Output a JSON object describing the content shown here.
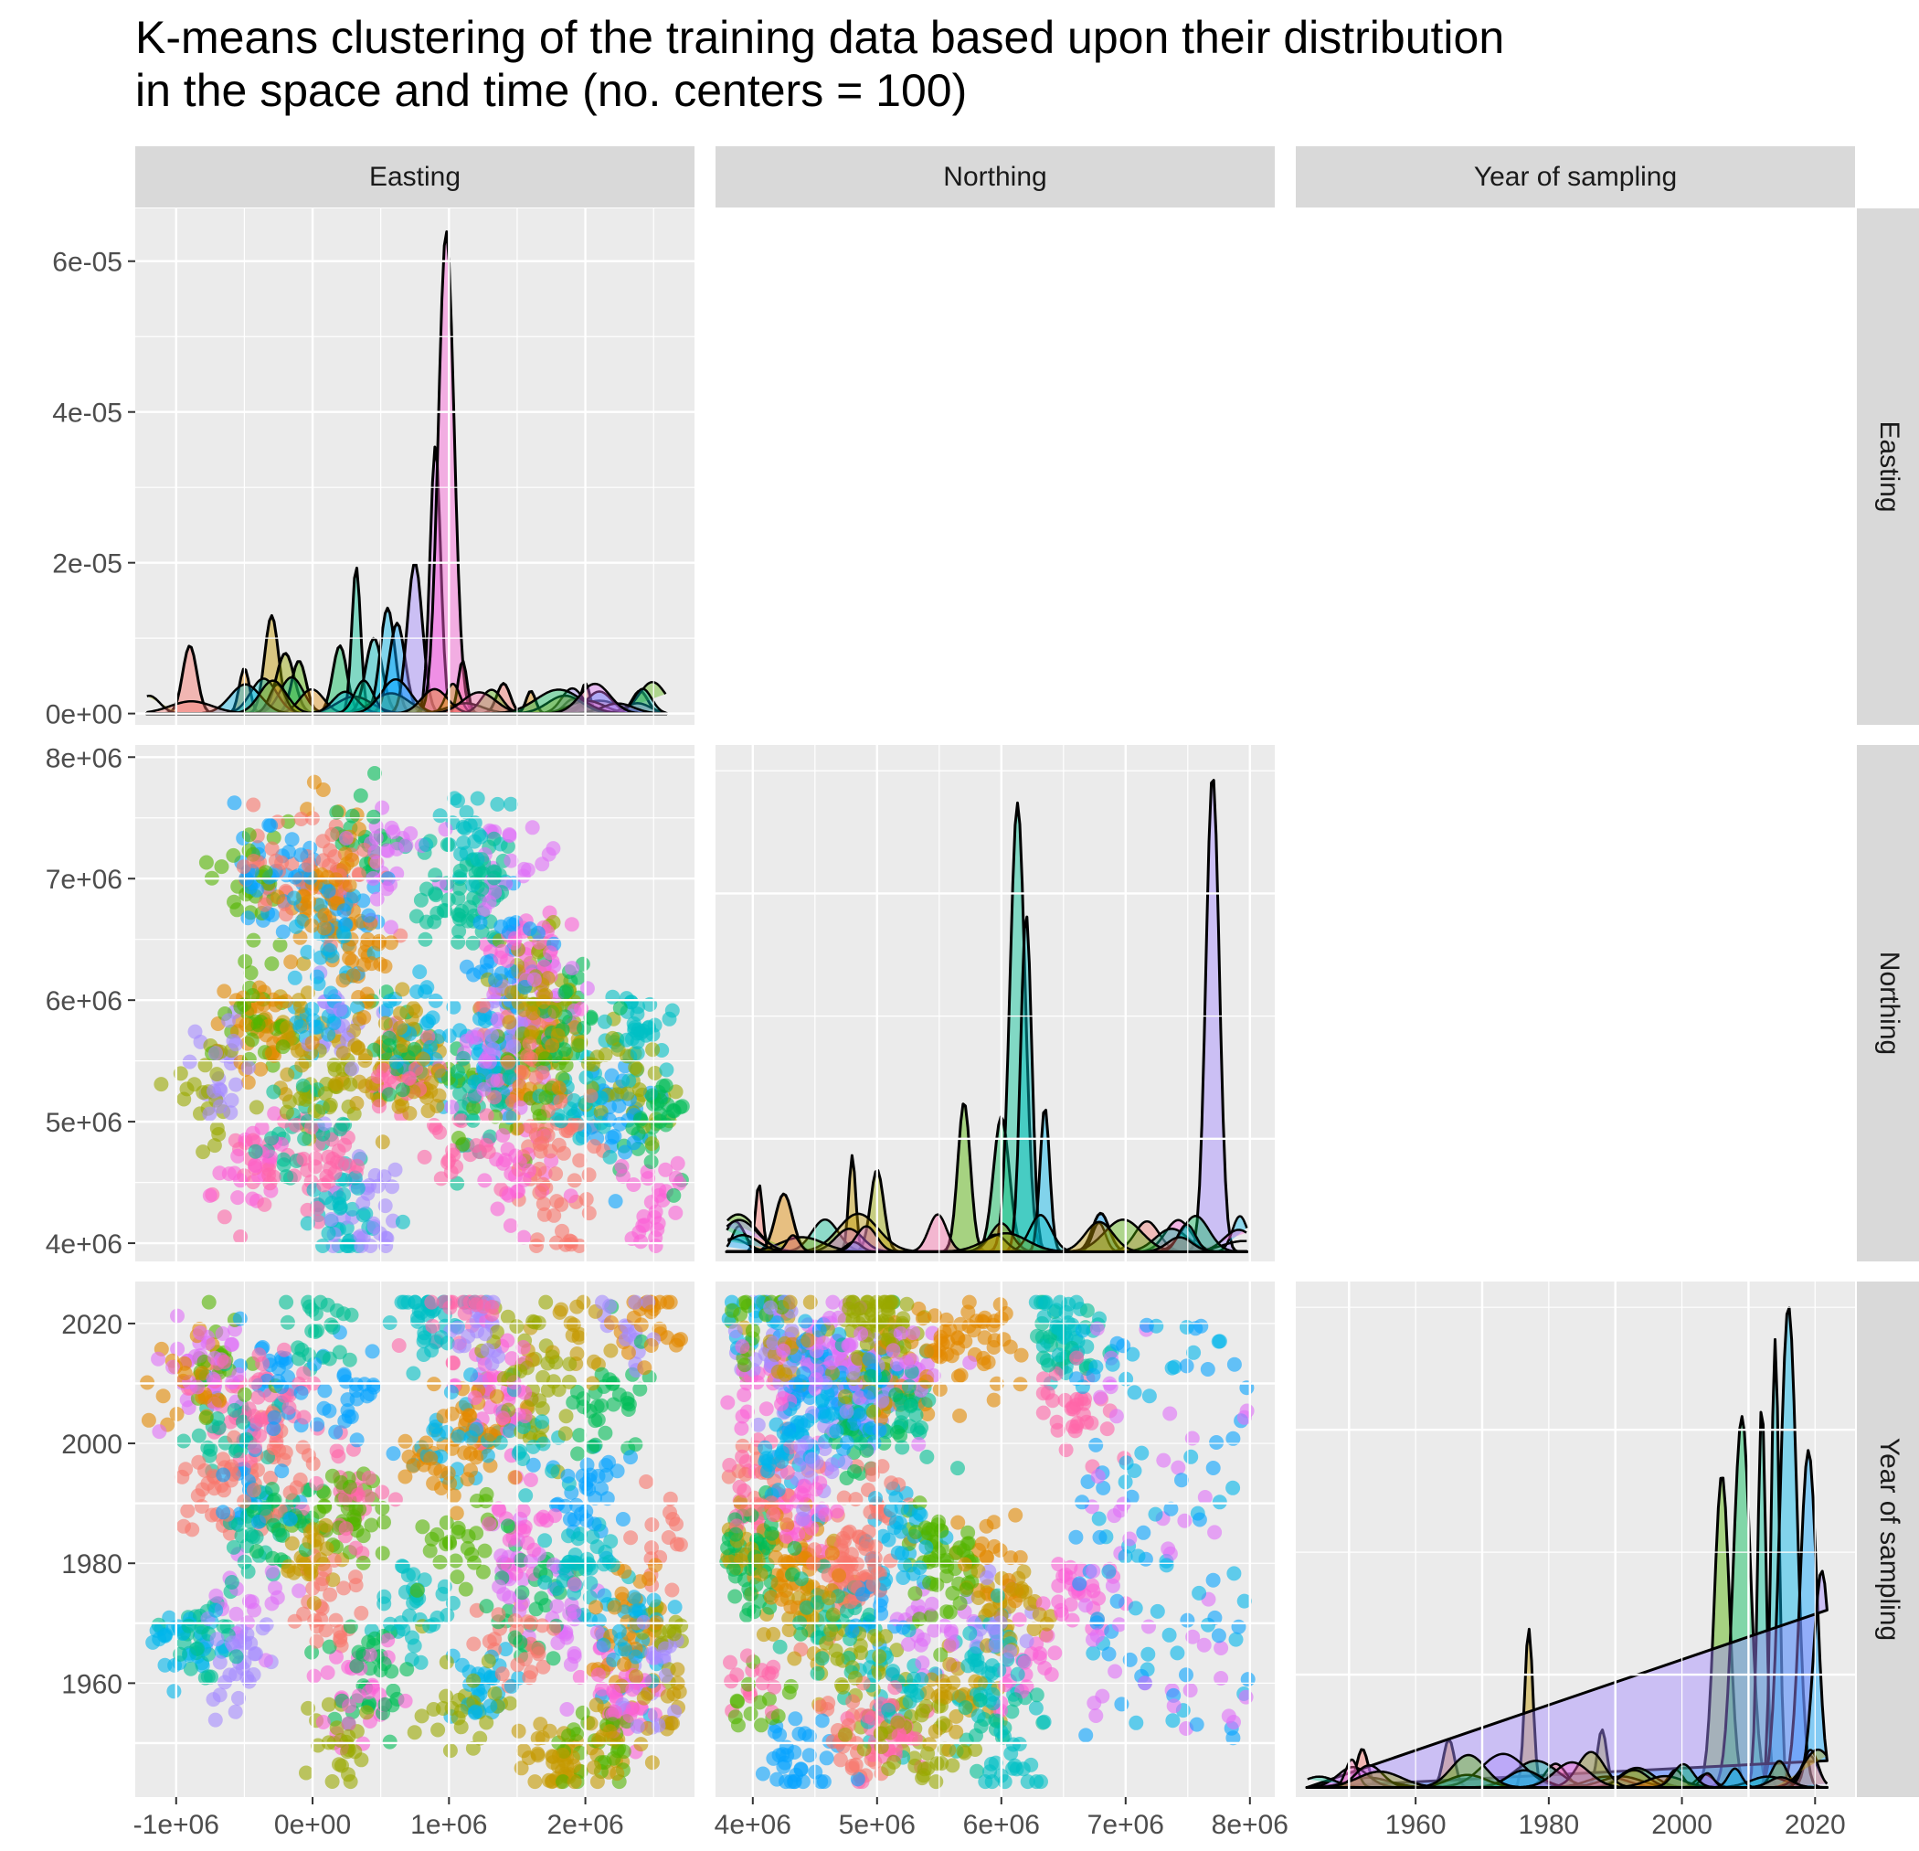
{
  "title_lines": [
    "K-means clustering of the training data based upon their distribution",
    "in the space and time (no. centers = 100)"
  ],
  "chart_data": {
    "type": "scatter",
    "subtype": "pairs-matrix (ggpairs): density plots on diagonal, scatter plots below diagonal",
    "variables": [
      "Easting",
      "Northing",
      "Year of sampling"
    ],
    "clusters": 100,
    "colors": {
      "panel_background": "#EBEBEB",
      "grid": "#FFFFFF",
      "strip_background": "#D9D9D9",
      "density_line": "#000000",
      "palette": [
        "#F8766D",
        "#E38900",
        "#C49A00",
        "#99A800",
        "#53B400",
        "#00BC56",
        "#00C094",
        "#00BFC4",
        "#00B6EB",
        "#06A4FF",
        "#A58AFF",
        "#DF70F8",
        "#FB61D7",
        "#FF66A8"
      ]
    },
    "panels": [
      {
        "row": "Easting",
        "col": "Easting",
        "type": "density",
        "x_range": [
          -1300000,
          2800000
        ],
        "y_range": [
          -1.5e-06,
          6.7e-05
        ],
        "x_ticks": [
          -1000000,
          0,
          1000000,
          2000000
        ],
        "y_ticks": [
          0,
          2e-05,
          4e-05,
          6e-05
        ],
        "y_tick_labels": [
          "0e+00",
          "2e-05",
          "4e-05",
          "6e-05"
        ],
        "peaks": [
          {
            "x": -900000,
            "y": 9e-06
          },
          {
            "x": -500000,
            "y": 6e-06
          },
          {
            "x": -300000,
            "y": 1.3e-05
          },
          {
            "x": -200000,
            "y": 8e-06
          },
          {
            "x": -100000,
            "y": 7e-06
          },
          {
            "x": 200000,
            "y": 9e-06
          },
          {
            "x": 320000,
            "y": 1.95e-05
          },
          {
            "x": 450000,
            "y": 1e-05
          },
          {
            "x": 550000,
            "y": 1.4e-05
          },
          {
            "x": 620000,
            "y": 1.2e-05
          },
          {
            "x": 750000,
            "y": 2e-05
          },
          {
            "x": 900000,
            "y": 3.55e-05
          },
          {
            "x": 980000,
            "y": 6.4e-05
          },
          {
            "x": 1100000,
            "y": 7e-06
          },
          {
            "x": 1400000,
            "y": 4e-06
          },
          {
            "x": 1600000,
            "y": 3e-06
          },
          {
            "x": 2000000,
            "y": 4e-06
          },
          {
            "x": 2400000,
            "y": 3e-06
          }
        ]
      },
      {
        "row": "Northing",
        "col": "Easting",
        "type": "scatter",
        "x_range": [
          -1300000,
          2800000
        ],
        "y_range": [
          3850000,
          8100000
        ],
        "y_ticks": [
          4000000,
          5000000,
          6000000,
          7000000,
          8000000
        ],
        "y_tick_labels": [
          "4e+06",
          "5e+06",
          "6e+06",
          "7e+06",
          "8e+06"
        ]
      },
      {
        "row": "Northing",
        "col": "Northing",
        "type": "density",
        "x_range": [
          3700000,
          8200000
        ],
        "peaks": [
          {
            "x": 4050000,
            "y": 0.14
          },
          {
            "x": 4250000,
            "y": 0.12
          },
          {
            "x": 4800000,
            "y": 0.2
          },
          {
            "x": 5000000,
            "y": 0.17
          },
          {
            "x": 5700000,
            "y": 0.31
          },
          {
            "x": 6000000,
            "y": 0.28
          },
          {
            "x": 6130000,
            "y": 0.93
          },
          {
            "x": 6200000,
            "y": 0.7
          },
          {
            "x": 6350000,
            "y": 0.3
          },
          {
            "x": 6800000,
            "y": 0.08
          },
          {
            "x": 7700000,
            "y": 0.99
          }
        ]
      },
      {
        "row": "Year of sampling",
        "col": "Easting",
        "type": "scatter",
        "x_range": [
          -1300000,
          2800000
        ],
        "y_range": [
          1941,
          2027
        ],
        "x_ticks": [
          -1000000,
          0,
          1000000,
          2000000
        ],
        "x_tick_labels": [
          "-1e+06",
          "0e+00",
          "1e+06",
          "2e+06"
        ],
        "y_ticks": [
          1960,
          1980,
          2000,
          2020
        ],
        "y_tick_labels": [
          "1960",
          "1980",
          "2000",
          "2020"
        ]
      },
      {
        "row": "Year of sampling",
        "col": "Northing",
        "type": "scatter",
        "x_range": [
          3700000,
          8200000
        ],
        "y_range": [
          1941,
          2027
        ],
        "x_ticks": [
          4000000,
          5000000,
          6000000,
          7000000,
          8000000
        ],
        "x_tick_labels": [
          "4e+06",
          "5e+06",
          "6e+06",
          "7e+06",
          "8e+06"
        ]
      },
      {
        "row": "Year of sampling",
        "col": "Year of sampling",
        "type": "density",
        "x_range": [
          1942,
          2026
        ],
        "x_ticks": [
          1960,
          1980,
          2000,
          2020
        ],
        "x_tick_labels": [
          "1960",
          "1980",
          "2000",
          "2020"
        ],
        "peaks": [
          {
            "x": 1952,
            "y": 0.08
          },
          {
            "x": 1965,
            "y": 0.1
          },
          {
            "x": 1977,
            "y": 0.33
          },
          {
            "x": 1988,
            "y": 0.12
          },
          {
            "x": 2006,
            "y": 0.65
          },
          {
            "x": 2009,
            "y": 0.77
          },
          {
            "x": 2012,
            "y": 0.8
          },
          {
            "x": 2014,
            "y": 0.93
          },
          {
            "x": 2016,
            "y": 1.0
          },
          {
            "x": 2019,
            "y": 0.7
          },
          {
            "x": 2021,
            "y": 0.45
          }
        ]
      }
    ]
  }
}
